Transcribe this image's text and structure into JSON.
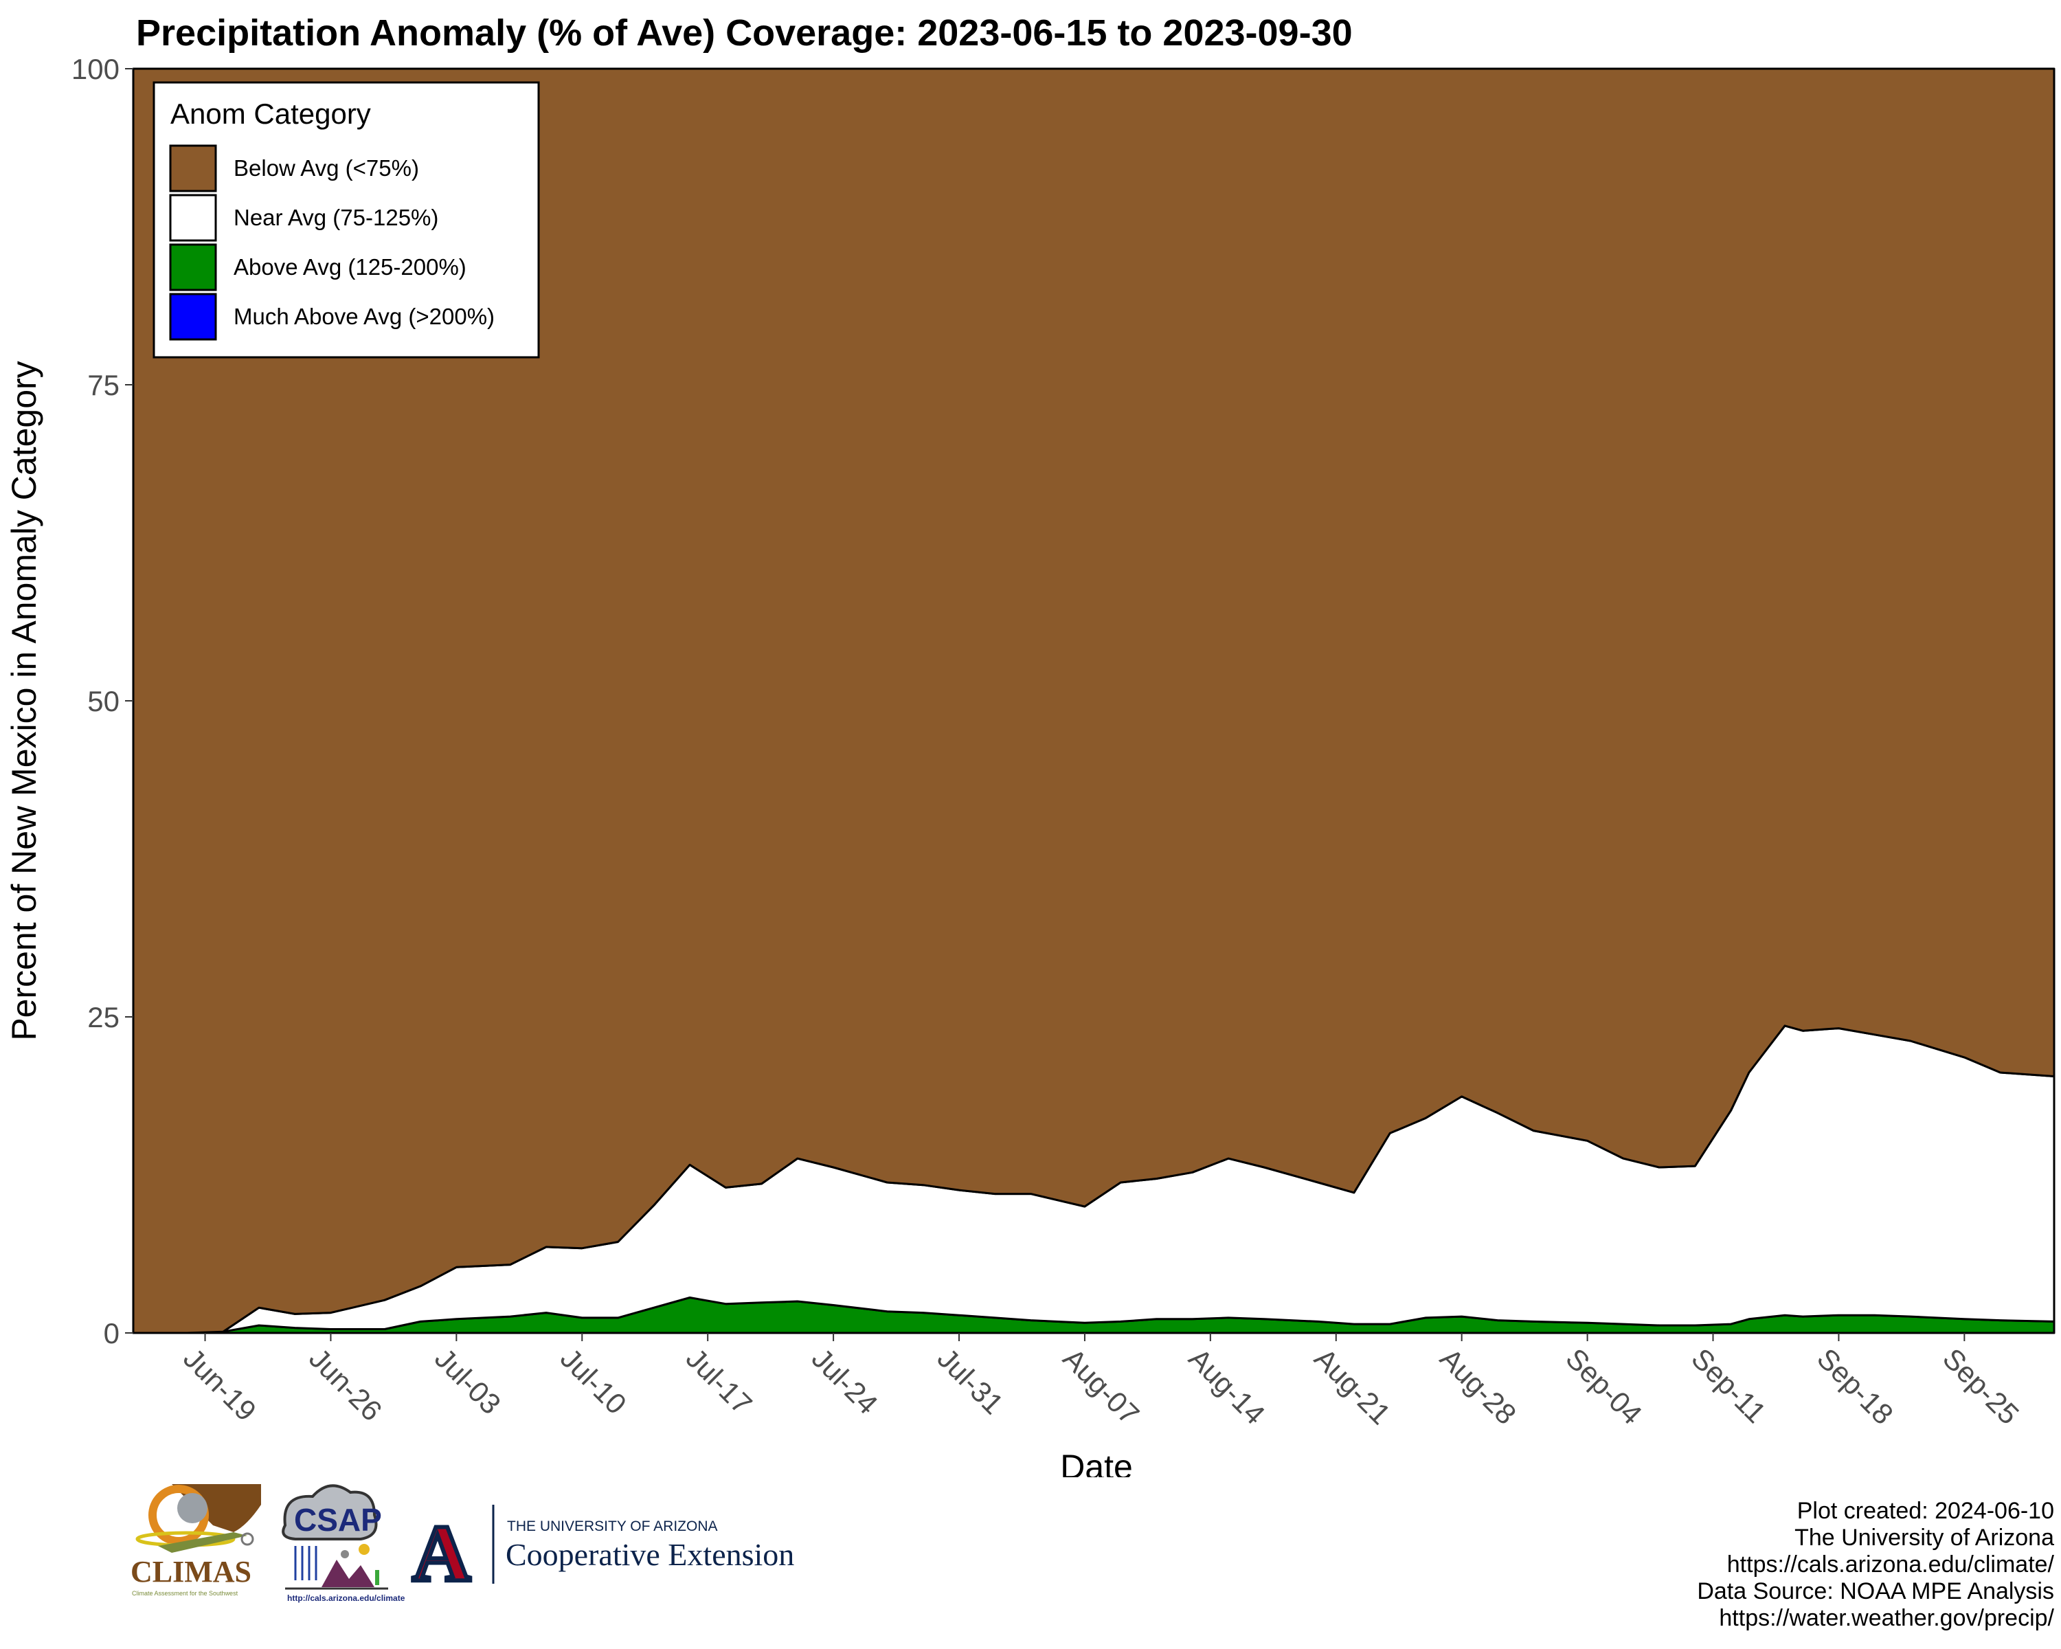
{
  "chart_data": {
    "type": "area",
    "title": "Precipitation Anomaly (% of Ave) Coverage: 2023-06-15 to 2023-09-30",
    "xlabel": "Date",
    "ylabel": "Percent of New Mexico in Anomaly Category",
    "ylim": [
      0,
      100
    ],
    "y_ticks": [
      "0",
      "25",
      "50",
      "75",
      "100"
    ],
    "x_range": [
      "2023-06-15",
      "2023-09-30"
    ],
    "x_ticks": [
      {
        "date": "2023-06-19",
        "label": "Jun-19"
      },
      {
        "date": "2023-06-26",
        "label": "Jun-26"
      },
      {
        "date": "2023-07-03",
        "label": "Jul-03"
      },
      {
        "date": "2023-07-10",
        "label": "Jul-10"
      },
      {
        "date": "2023-07-17",
        "label": "Jul-17"
      },
      {
        "date": "2023-07-24",
        "label": "Jul-24"
      },
      {
        "date": "2023-07-31",
        "label": "Jul-31"
      },
      {
        "date": "2023-08-07",
        "label": "Aug-07"
      },
      {
        "date": "2023-08-14",
        "label": "Aug-14"
      },
      {
        "date": "2023-08-21",
        "label": "Aug-21"
      },
      {
        "date": "2023-08-28",
        "label": "Aug-28"
      },
      {
        "date": "2023-09-04",
        "label": "Sep-04"
      },
      {
        "date": "2023-09-11",
        "label": "Sep-11"
      },
      {
        "date": "2023-09-18",
        "label": "Sep-18"
      },
      {
        "date": "2023-09-25",
        "label": "Sep-25"
      }
    ],
    "grid": false,
    "legend": {
      "title": "Anom Category",
      "placement": "top-left",
      "entries": [
        {
          "label": "Below Avg (<75%)",
          "color": "#8B5A2B"
        },
        {
          "label": "Near Avg (75-125%)",
          "color": "#FFFFFF"
        },
        {
          "label": "Above Avg (125-200%)",
          "color": "#008B00"
        },
        {
          "label": "Much Above Avg (>200%)",
          "color": "#0000FF"
        }
      ]
    },
    "x": [
      "2023-06-15",
      "2023-06-18",
      "2023-06-20",
      "2023-06-22",
      "2023-06-24",
      "2023-06-26",
      "2023-06-29",
      "2023-07-01",
      "2023-07-03",
      "2023-07-06",
      "2023-07-08",
      "2023-07-10",
      "2023-07-12",
      "2023-07-14",
      "2023-07-16",
      "2023-07-18",
      "2023-07-20",
      "2023-07-22",
      "2023-07-24",
      "2023-07-27",
      "2023-07-29",
      "2023-07-31",
      "2023-08-02",
      "2023-08-04",
      "2023-08-07",
      "2023-08-09",
      "2023-08-11",
      "2023-08-13",
      "2023-08-15",
      "2023-08-17",
      "2023-08-20",
      "2023-08-22",
      "2023-08-24",
      "2023-08-26",
      "2023-08-28",
      "2023-08-30",
      "2023-09-01",
      "2023-09-04",
      "2023-09-06",
      "2023-09-08",
      "2023-09-10",
      "2023-09-12",
      "2023-09-13",
      "2023-09-15",
      "2023-09-16",
      "2023-09-18",
      "2023-09-20",
      "2023-09-22",
      "2023-09-25",
      "2023-09-27",
      "2023-09-30"
    ],
    "series": [
      {
        "name": "Much Above Avg (>200%)",
        "color": "#0000FF",
        "values": [
          0,
          0,
          0,
          0,
          0,
          0,
          0,
          0,
          0,
          0,
          0,
          0,
          0,
          0,
          0,
          0,
          0,
          0,
          0,
          0,
          0,
          0,
          0,
          0,
          0,
          0,
          0,
          0,
          0,
          0,
          0,
          0,
          0,
          0,
          0,
          0,
          0,
          0,
          0,
          0,
          0,
          0,
          0,
          0,
          0,
          0,
          0,
          0,
          0,
          0,
          0
        ]
      },
      {
        "name": "Above Avg (125-200%)",
        "color": "#008B00",
        "values": [
          0,
          0,
          0.1,
          0.6,
          0.4,
          0.3,
          0.3,
          0.9,
          1.1,
          1.3,
          1.6,
          1.2,
          1.2,
          2.0,
          2.8,
          2.3,
          2.4,
          2.5,
          2.2,
          1.7,
          1.6,
          1.4,
          1.2,
          1.0,
          0.8,
          0.9,
          1.1,
          1.1,
          1.2,
          1.1,
          0.9,
          0.7,
          0.7,
          1.2,
          1.3,
          1.0,
          0.9,
          0.8,
          0.7,
          0.6,
          0.6,
          0.7,
          1.1,
          1.4,
          1.3,
          1.4,
          1.4,
          1.3,
          1.1,
          1.0,
          0.9
        ]
      },
      {
        "name": "Near Avg (75-125%)",
        "color": "#FFFFFF",
        "values": [
          0,
          0,
          0,
          1.4,
          1.1,
          1.3,
          2.3,
          2.8,
          4.1,
          4.1,
          5.2,
          5.5,
          6.0,
          8.1,
          10.5,
          9.2,
          9.4,
          11.3,
          10.9,
          10.2,
          10.1,
          9.9,
          9.8,
          10.0,
          9.2,
          11.0,
          11.1,
          11.6,
          12.6,
          12.0,
          11.0,
          10.4,
          15.1,
          15.8,
          17.4,
          16.4,
          15.1,
          14.4,
          13.1,
          12.5,
          12.6,
          16.9,
          19.5,
          22.9,
          22.6,
          22.7,
          22.2,
          21.8,
          20.7,
          19.6,
          19.4
        ]
      },
      {
        "name": "Below Avg (<75%)",
        "color": "#8B5A2B",
        "values": [
          100,
          100,
          99.9,
          98.0,
          98.5,
          98.4,
          97.4,
          96.3,
          94.8,
          94.6,
          93.2,
          93.3,
          92.8,
          89.9,
          86.7,
          88.5,
          88.2,
          86.2,
          86.9,
          88.1,
          88.3,
          88.7,
          89.0,
          89.0,
          90.0,
          88.1,
          87.8,
          87.3,
          86.2,
          86.9,
          88.1,
          88.9,
          84.2,
          83.0,
          81.3,
          82.6,
          84.0,
          84.8,
          86.2,
          86.9,
          86.8,
          82.4,
          79.4,
          75.7,
          76.1,
          75.9,
          76.4,
          76.9,
          78.2,
          79.4,
          79.7
        ]
      }
    ]
  },
  "credits": {
    "lines": [
      "Plot created: 2024-06-10",
      "The University of Arizona",
      "https://cals.arizona.edu/climate/",
      "Data Source: NOAA MPE Analysis",
      "https://water.weather.gov/precip/"
    ]
  },
  "logos": {
    "climas_name": "CLIMAS",
    "climas_tagline": "Climate Assessment for the Southwest",
    "csap_name": "CSAP",
    "csap_url": "http://cals.arizona.edu/climate",
    "ua_mark": "A",
    "ua_line1": "THE UNIVERSITY OF ARIZONA",
    "ua_line2": "Cooperative Extension"
  }
}
